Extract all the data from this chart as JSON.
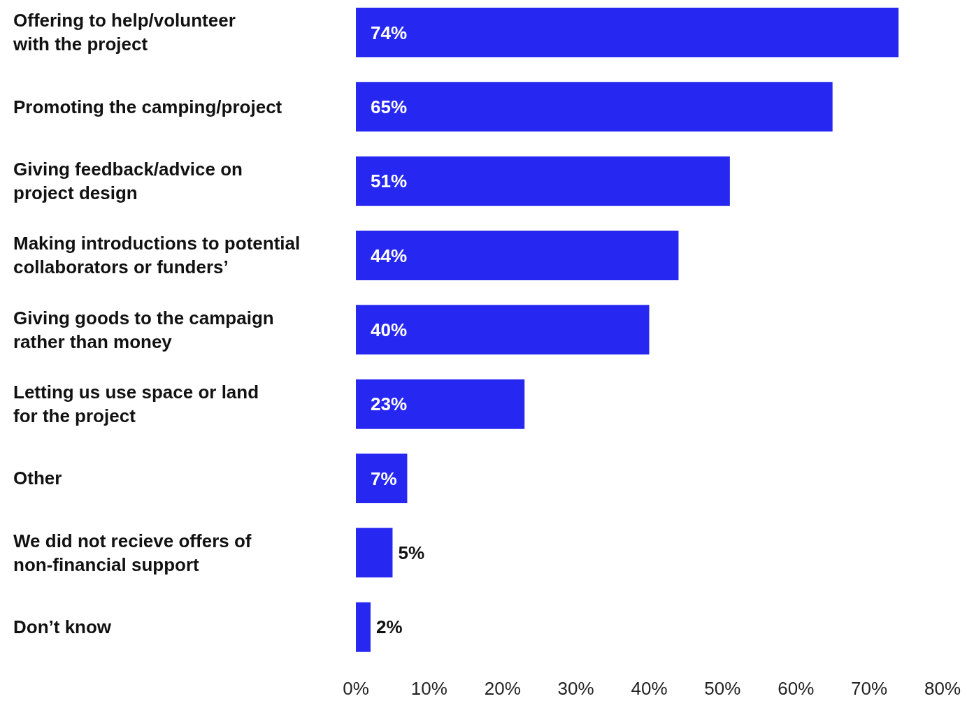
{
  "chart_data": {
    "type": "bar",
    "orientation": "horizontal",
    "categories": [
      "Offering to help/volunteer with the project",
      "Promoting the camping/project",
      "Giving feedback/advice on project design",
      "Making introductions to potential collaborators or funders’",
      "Giving goods to the campaign rather than money",
      "Letting us use space or land for the project",
      "Other",
      "We did not recieve offers of non-financial support",
      "Don’t know"
    ],
    "values": [
      74,
      65,
      51,
      44,
      40,
      23,
      7,
      5,
      2
    ],
    "value_labels": [
      "74%",
      "65%",
      "51%",
      "44%",
      "40%",
      "23%",
      "7%",
      "5%",
      "2%"
    ],
    "color": "#2727f2",
    "xlim": [
      0,
      80
    ],
    "xticks": [
      {
        "value": 0,
        "label": "0%"
      },
      {
        "value": 10,
        "label": "10%"
      },
      {
        "value": 20,
        "label": "20%"
      },
      {
        "value": 30,
        "label": "30%"
      },
      {
        "value": 40,
        "label": "40%"
      },
      {
        "value": 50,
        "label": "50%"
      },
      {
        "value": 60,
        "label": "60%"
      },
      {
        "value": 70,
        "label": "70%"
      },
      {
        "value": 80,
        "label": "80%"
      }
    ]
  }
}
